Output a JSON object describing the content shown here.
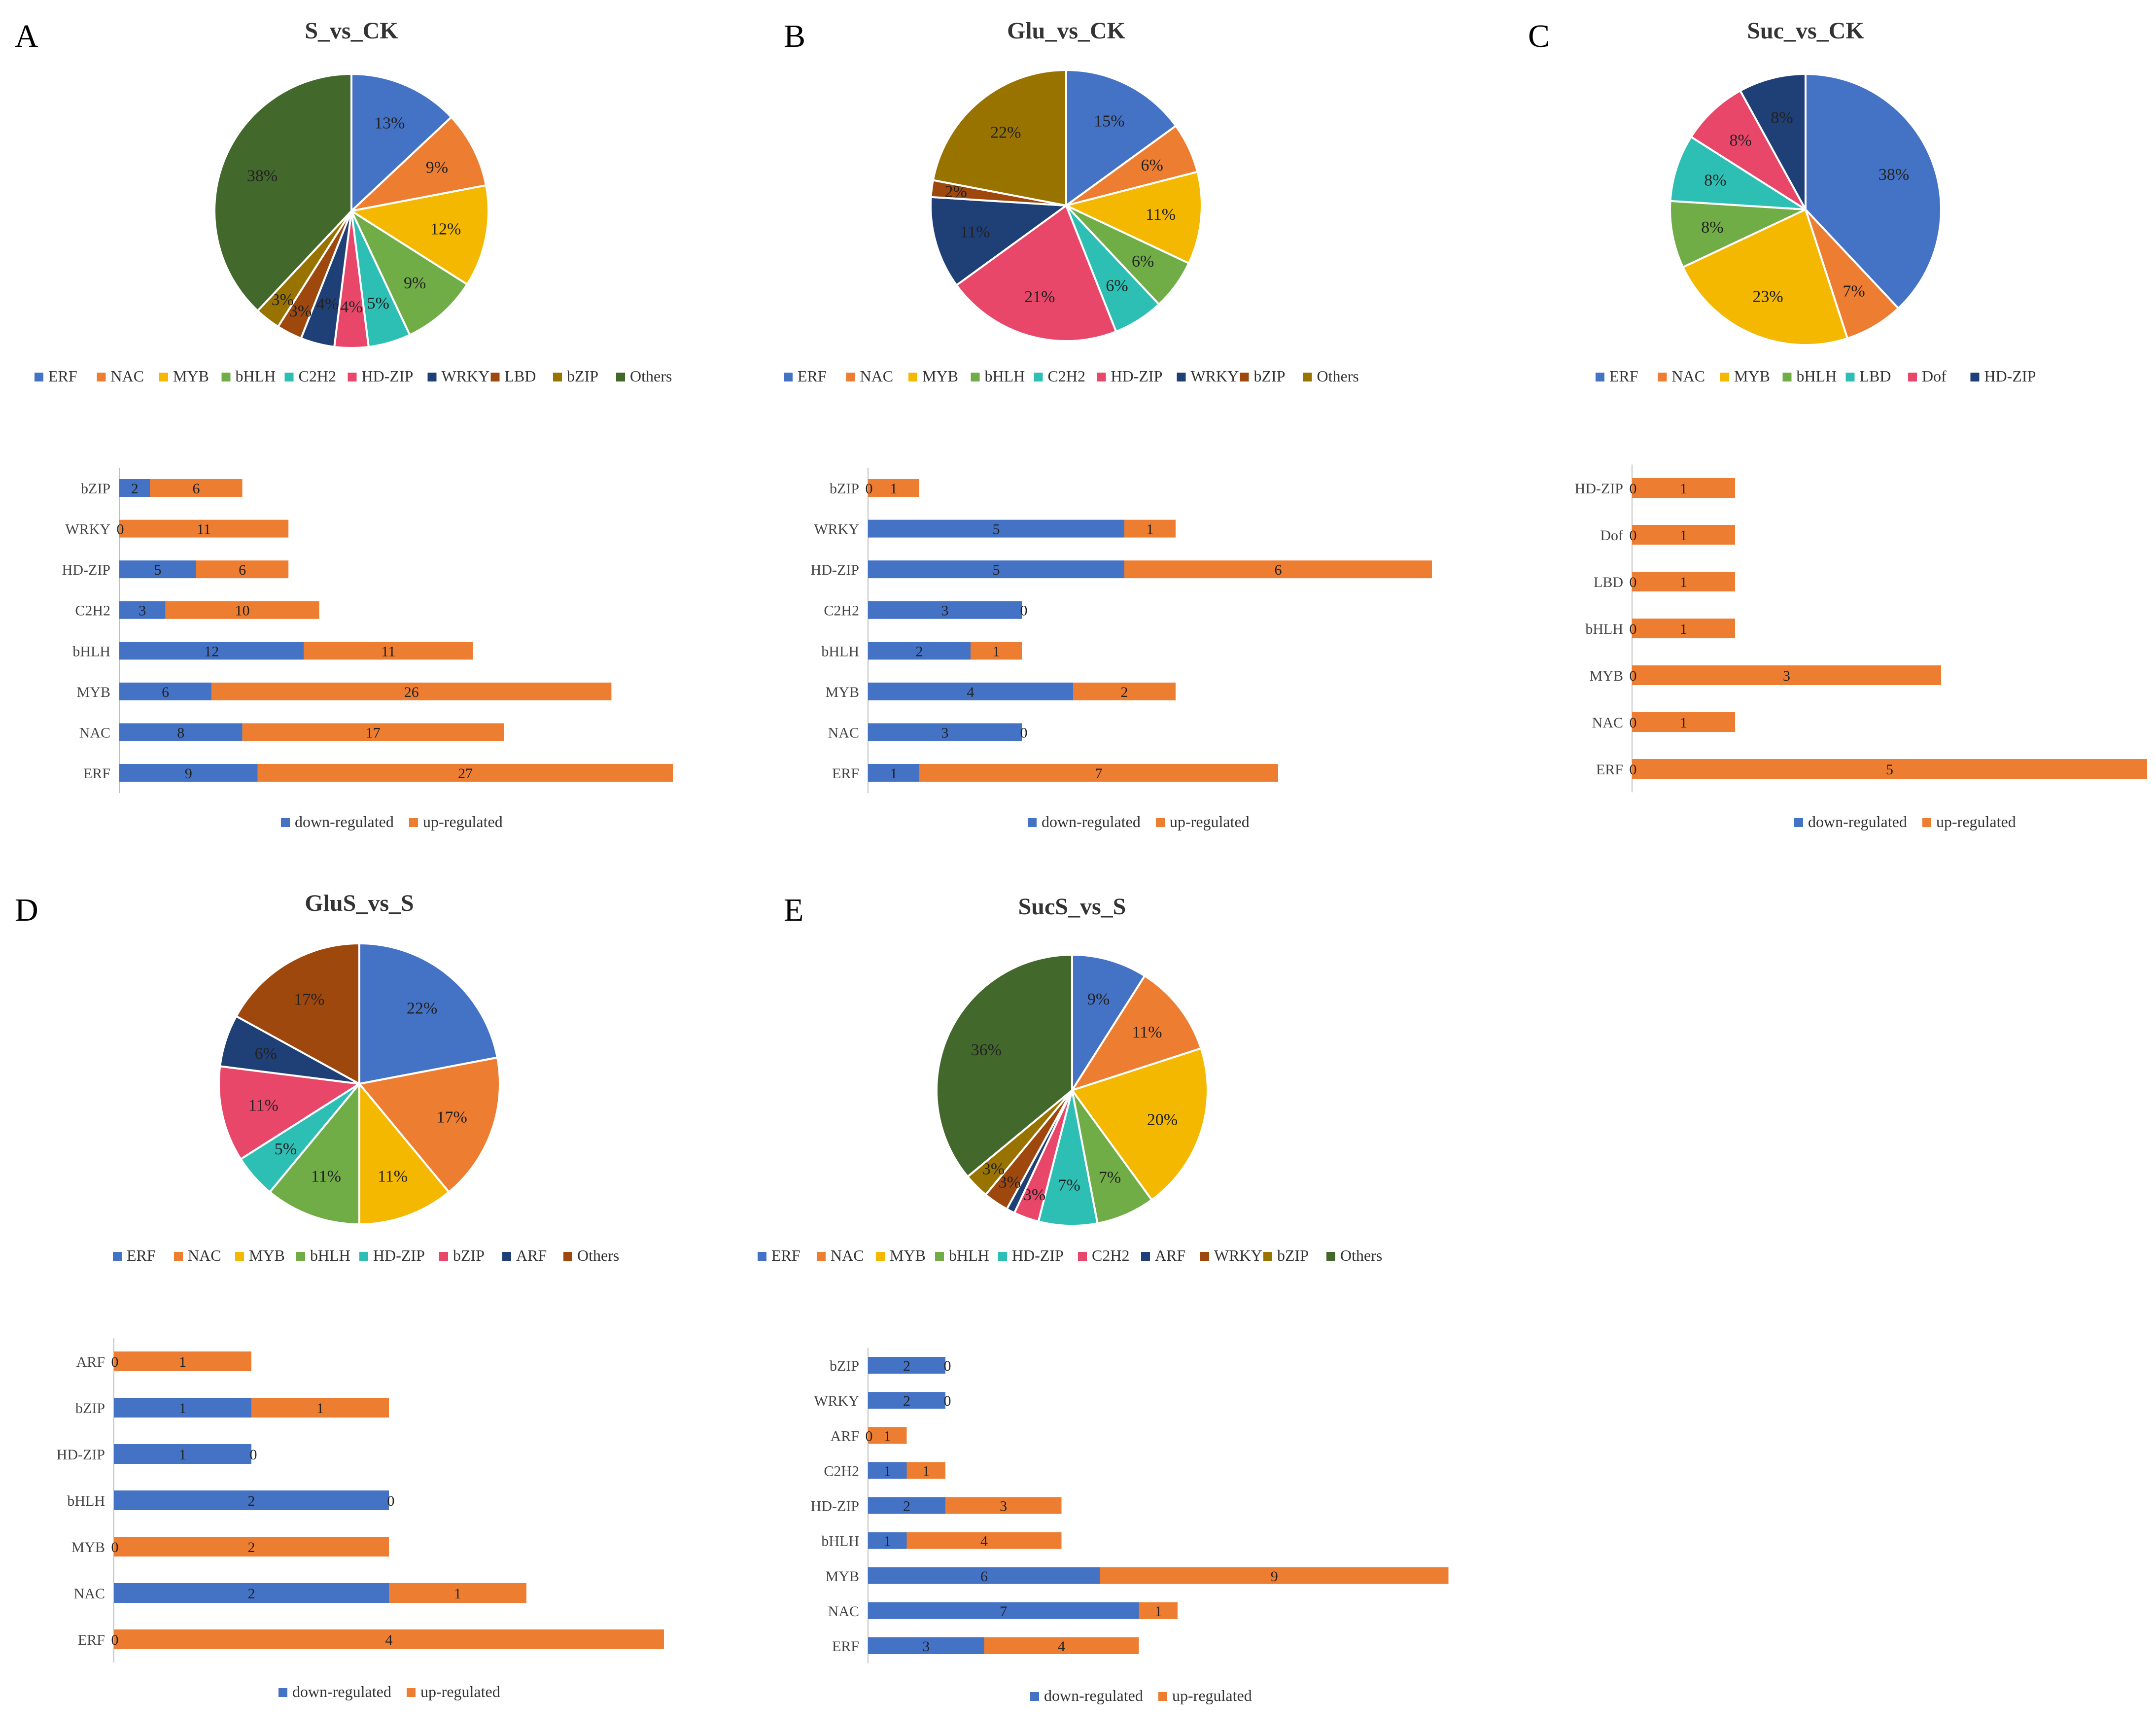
{
  "colors": {
    "ERF": "#4472C4",
    "NAC": "#ED7D31",
    "MYB": "#F4B800",
    "bHLH": "#70AD47",
    "C2H2": "#2EBFB4",
    "HD-ZIP": "#E8476A",
    "HD-ZIP_C": "#1F3F77",
    "WRKY": "#1F3F77",
    "LBD": "#9E480E",
    "bZIP": "#997300",
    "Others": "#43682B",
    "Dof": "#E8476A",
    "ARF": "#1F3F77",
    "down": "#4472C4",
    "up": "#ED7D31",
    "othersD": "#9E480E"
  },
  "chart_data": [
    {
      "panel": "A",
      "type": "pie",
      "title": "S_vs_CK",
      "categories": [
        "ERF",
        "NAC",
        "MYB",
        "bHLH",
        "C2H2",
        "HD-ZIP",
        "WRKY",
        "LBD",
        "bZIP",
        "Others"
      ],
      "values": [
        13,
        9,
        12,
        9,
        5,
        4,
        4,
        3,
        3,
        38
      ],
      "labels": [
        "13%",
        "9%",
        "12%",
        "9%",
        "5%",
        "4%",
        "4%",
        "3%",
        "3%",
        "38%"
      ],
      "legend": [
        "ERF",
        "NAC",
        "MYB",
        "bHLH",
        "C2H2",
        "HD-ZIP",
        "WRKY",
        "LBD",
        "bZIP",
        "Others"
      ],
      "color_keys": [
        "ERF",
        "NAC",
        "MYB",
        "bHLH",
        "C2H2",
        "HD-ZIP",
        "WRKY",
        "LBD",
        "bZIP",
        "Others"
      ]
    },
    {
      "panel": "A",
      "type": "bar",
      "stacked": true,
      "orientation": "horizontal",
      "categories": [
        "bZIP",
        "WRKY",
        "HD-ZIP",
        "C2H2",
        "bHLH",
        "MYB",
        "NAC",
        "ERF"
      ],
      "series": [
        {
          "name": "down-regulated",
          "values": [
            2,
            0,
            5,
            3,
            12,
            6,
            8,
            9
          ]
        },
        {
          "name": "up-regulated",
          "values": [
            6,
            11,
            6,
            10,
            11,
            26,
            17,
            27
          ]
        }
      ],
      "legend": [
        "down-regulated",
        "up-regulated"
      ]
    },
    {
      "panel": "B",
      "type": "pie",
      "title": "Glu_vs_CK",
      "categories": [
        "ERF",
        "NAC",
        "MYB",
        "bHLH",
        "C2H2",
        "HD-ZIP",
        "WRKY",
        "bZIP",
        "Others"
      ],
      "values": [
        15,
        6,
        11,
        6,
        6,
        21,
        11,
        2,
        22
      ],
      "labels": [
        "15%",
        "6%",
        "11%",
        "6%",
        "6%",
        "21%",
        "11%",
        "2%",
        "22%"
      ],
      "legend": [
        "ERF",
        "NAC",
        "MYB",
        "bHLH",
        "C2H2",
        "HD-ZIP",
        "WRKY",
        "bZIP",
        "Others"
      ],
      "color_keys": [
        "ERF",
        "NAC",
        "MYB",
        "bHLH",
        "C2H2",
        "HD-ZIP",
        "WRKY",
        "LBD",
        "bZIP"
      ]
    },
    {
      "panel": "B",
      "type": "bar",
      "stacked": true,
      "orientation": "horizontal",
      "categories": [
        "bZIP",
        "WRKY",
        "HD-ZIP",
        "C2H2",
        "bHLH",
        "MYB",
        "NAC",
        "ERF"
      ],
      "series": [
        {
          "name": "down-regulated",
          "values": [
            0,
            5,
            5,
            3,
            2,
            4,
            3,
            1
          ]
        },
        {
          "name": "up-regulated",
          "values": [
            1,
            1,
            6,
            0,
            1,
            2,
            0,
            7
          ]
        }
      ],
      "legend": [
        "down-regulated",
        "up-regulated"
      ]
    },
    {
      "panel": "C",
      "type": "pie",
      "title": "Suc_vs_CK",
      "categories": [
        "ERF",
        "NAC",
        "MYB",
        "bHLH",
        "LBD",
        "Dof",
        "HD-ZIP"
      ],
      "values": [
        38,
        7,
        23,
        8,
        8,
        8,
        8
      ],
      "labels": [
        "38%",
        "7%",
        "23%",
        "8%",
        "8%",
        "8%",
        "8%"
      ],
      "legend": [
        "ERF",
        "NAC",
        "MYB",
        "bHLH",
        "LBD",
        "Dof",
        "HD-ZIP"
      ],
      "color_keys": [
        "ERF",
        "NAC",
        "MYB",
        "bHLH",
        "C2H2",
        "Dof",
        "HD-ZIP_C"
      ]
    },
    {
      "panel": "C",
      "type": "bar",
      "stacked": true,
      "orientation": "horizontal",
      "categories": [
        "HD-ZIP",
        "Dof",
        "LBD",
        "bHLH",
        "MYB",
        "NAC",
        "ERF"
      ],
      "series": [
        {
          "name": "down-regulated",
          "values": [
            0,
            0,
            0,
            0,
            0,
            0,
            0
          ]
        },
        {
          "name": "up-regulated",
          "values": [
            1,
            1,
            1,
            1,
            3,
            1,
            5
          ]
        }
      ],
      "legend": [
        "down-regulated",
        "up-regulated"
      ]
    },
    {
      "panel": "D",
      "type": "pie",
      "title": "GluS_vs_S",
      "categories": [
        "ERF",
        "NAC",
        "MYB",
        "bHLH",
        "HD-ZIP",
        "bZIP",
        "ARF",
        "Others"
      ],
      "values": [
        22,
        17,
        11,
        11,
        5,
        11,
        6,
        17
      ],
      "labels": [
        "22%",
        "17%",
        "11%",
        "11%",
        "5%",
        "11%",
        "6%",
        "17%"
      ],
      "legend": [
        "ERF",
        "NAC",
        "MYB",
        "bHLH",
        "HD-ZIP",
        "bZIP",
        "ARF",
        "Others"
      ],
      "color_keys": [
        "ERF",
        "NAC",
        "MYB",
        "bHLH",
        "C2H2",
        "HD-ZIP",
        "WRKY",
        "othersD"
      ]
    },
    {
      "panel": "D",
      "type": "bar",
      "stacked": true,
      "orientation": "horizontal",
      "categories": [
        "ARF",
        "bZIP",
        "HD-ZIP",
        "bHLH",
        "MYB",
        "NAC",
        "ERF"
      ],
      "series": [
        {
          "name": "down-regulated",
          "values": [
            0,
            1,
            1,
            2,
            0,
            2,
            0
          ]
        },
        {
          "name": "up-regulated",
          "values": [
            1,
            1,
            0,
            0,
            2,
            1,
            4
          ]
        }
      ],
      "legend": [
        "down-regulated",
        "up-regulated"
      ]
    },
    {
      "panel": "E",
      "type": "pie",
      "title": "SucS_vs_S",
      "categories": [
        "ERF",
        "NAC",
        "MYB",
        "bHLH",
        "HD-ZIP",
        "C2H2",
        "ARF",
        "WRKY",
        "bZIP",
        "Others"
      ],
      "values": [
        9,
        11,
        20,
        7,
        7,
        3,
        1,
        3,
        3,
        36
      ],
      "labels": [
        "9%",
        "11%",
        "20%",
        "7%",
        "7%",
        "3%",
        "",
        "3%",
        "3%",
        "36%"
      ],
      "legend": [
        "ERF",
        "NAC",
        "MYB",
        "bHLH",
        "HD-ZIP",
        "C2H2",
        "ARF",
        "WRKY",
        "bZIP",
        "Others"
      ],
      "color_keys": [
        "ERF",
        "NAC",
        "MYB",
        "bHLH",
        "C2H2",
        "HD-ZIP",
        "WRKY",
        "LBD",
        "bZIP",
        "Others"
      ]
    },
    {
      "panel": "E",
      "type": "bar",
      "stacked": true,
      "orientation": "horizontal",
      "categories": [
        "bZIP",
        "WRKY",
        "ARF",
        "C2H2",
        "HD-ZIP",
        "bHLH",
        "MYB",
        "NAC",
        "ERF"
      ],
      "series": [
        {
          "name": "down-regulated",
          "values": [
            2,
            2,
            0,
            1,
            2,
            1,
            6,
            7,
            3
          ]
        },
        {
          "name": "up-regulated",
          "values": [
            0,
            0,
            1,
            1,
            3,
            4,
            9,
            1,
            4
          ]
        }
      ],
      "legend": [
        "down-regulated",
        "up-regulated"
      ]
    }
  ]
}
